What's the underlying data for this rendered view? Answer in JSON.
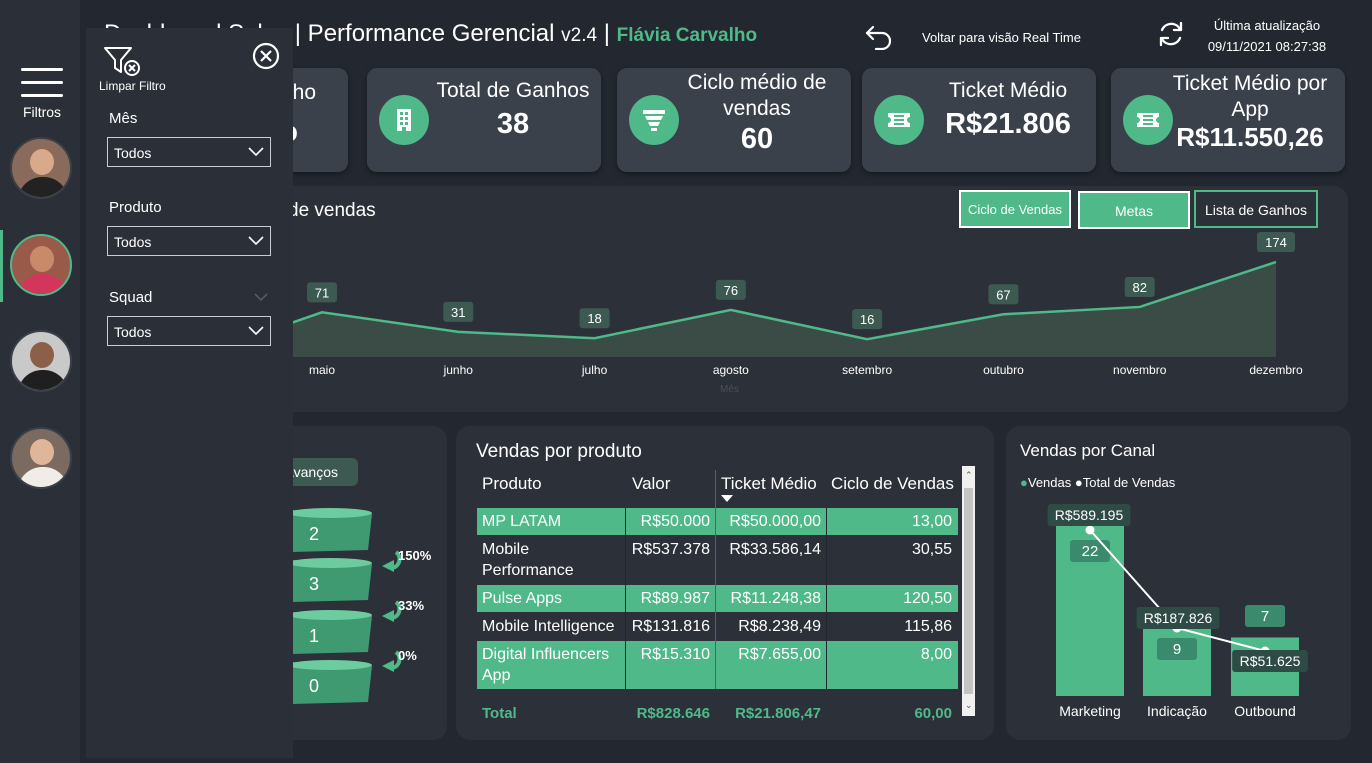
{
  "header": {
    "title": "Dashboard Sales | Performance Gerencial",
    "version": "v2.4",
    "separator": "|",
    "user": "Flávia Carvalho",
    "back_label": "Voltar para visão Real Time",
    "update_label": "Última atualização",
    "update_time": "09/11/2021 08:27:38"
  },
  "rail": {
    "menu_label": "Filtros"
  },
  "kpis": [
    {
      "label": "ho",
      "value": "o"
    },
    {
      "label": "Total de Ganhos",
      "value": "38"
    },
    {
      "label": "Ciclo médio de vendas",
      "value": "60"
    },
    {
      "label": "Ticket Médio",
      "value": "R$21.806"
    },
    {
      "label": "Ticket Médio por App",
      "value": "R$11.550,26"
    }
  ],
  "line_panel": {
    "title_fragment": "de vendas",
    "x_axis_label": "Mês",
    "buttons": [
      "Ciclo de Vendas",
      "Metas",
      "Lista de Ganhos"
    ]
  },
  "chart_data": [
    {
      "type": "area",
      "title": "de vendas",
      "xlabel": "Mês",
      "categories": [
        "maio",
        "junho",
        "julho",
        "agosto",
        "setembro",
        "outubro",
        "novembro",
        "dezembro"
      ],
      "values": [
        71,
        31,
        18,
        76,
        16,
        67,
        82,
        174
      ]
    },
    {
      "type": "bar",
      "title": "Vendas por Canal",
      "categories": [
        "Marketing",
        "Indicação",
        "Outbound"
      ],
      "series": [
        {
          "name": "Vendas",
          "values": [
            22,
            9,
            7
          ]
        },
        {
          "name": "Total de Vendas",
          "values": [
            589195,
            187826,
            51625
          ],
          "labels": [
            "R$589.195",
            "R$187.826",
            "R$51.625"
          ]
        }
      ]
    }
  ],
  "funnel": {
    "button": "Avanços",
    "levels": [
      "2",
      "3",
      "1",
      "0"
    ],
    "conversions": [
      "150%",
      "33%",
      "0%"
    ]
  },
  "products": {
    "title": "Vendas por produto",
    "columns": [
      "Produto",
      "Valor",
      "Ticket Médio",
      "Ciclo de Vendas"
    ],
    "rows": [
      [
        "MP LATAM",
        "R$50.000",
        "R$50.000,00",
        "13,00"
      ],
      [
        "Mobile Performance",
        "R$537.378",
        "R$33.586,14",
        "30,55"
      ],
      [
        "Pulse Apps",
        "R$89.987",
        "R$11.248,38",
        "120,50"
      ],
      [
        "Mobile Intelligence",
        "R$131.816",
        "R$8.238,49",
        "115,86"
      ],
      [
        "Digital Influencers App",
        "R$15.310",
        "R$7.655,00",
        "8,00"
      ]
    ],
    "total": [
      "Total",
      "R$828.646",
      "R$21.806,47",
      "60,00"
    ]
  },
  "canal": {
    "title": "Vendas por Canal",
    "legend": [
      "Vendas",
      "Total de Vendas"
    ]
  },
  "filters": {
    "clear_label": "Limpar Filtro",
    "items": [
      {
        "label": "Mês",
        "value": "Todos"
      },
      {
        "label": "Produto",
        "value": "Todos"
      },
      {
        "label": "Squad",
        "value": "Todos"
      }
    ]
  },
  "colors": {
    "accent": "#4fb98a",
    "background": "#232830",
    "panel": "#2c3139",
    "card": "#3a414b"
  }
}
